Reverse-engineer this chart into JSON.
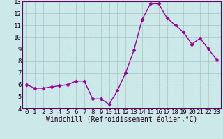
{
  "x": [
    0,
    1,
    2,
    3,
    4,
    5,
    6,
    7,
    8,
    9,
    10,
    11,
    12,
    13,
    14,
    15,
    16,
    17,
    18,
    19,
    20,
    21,
    22,
    23
  ],
  "y": [
    6.0,
    5.7,
    5.7,
    5.8,
    5.9,
    6.0,
    6.3,
    6.3,
    4.8,
    4.8,
    4.35,
    5.5,
    7.0,
    8.9,
    11.5,
    12.8,
    12.8,
    11.6,
    11.0,
    10.4,
    9.4,
    9.9,
    9.0,
    8.1
  ],
  "line_color": "#990099",
  "marker": "D",
  "marker_size": 2.5,
  "bg_color": "#cce8e8",
  "grid_color": "#aacccc",
  "xlabel": "Windchill (Refroidissement éolien,°C)",
  "xlim": [
    -0.5,
    23.5
  ],
  "ylim": [
    4,
    13
  ],
  "xticks": [
    0,
    1,
    2,
    3,
    4,
    5,
    6,
    7,
    8,
    9,
    10,
    11,
    12,
    13,
    14,
    15,
    16,
    17,
    18,
    19,
    20,
    21,
    22,
    23
  ],
  "yticks": [
    4,
    5,
    6,
    7,
    8,
    9,
    10,
    11,
    12,
    13
  ],
  "tick_label_color": "#220022",
  "xlabel_color": "#220022",
  "xlabel_fontsize": 7,
  "tick_fontsize": 6.5,
  "spine_color": "#660066",
  "linewidth": 1.0
}
